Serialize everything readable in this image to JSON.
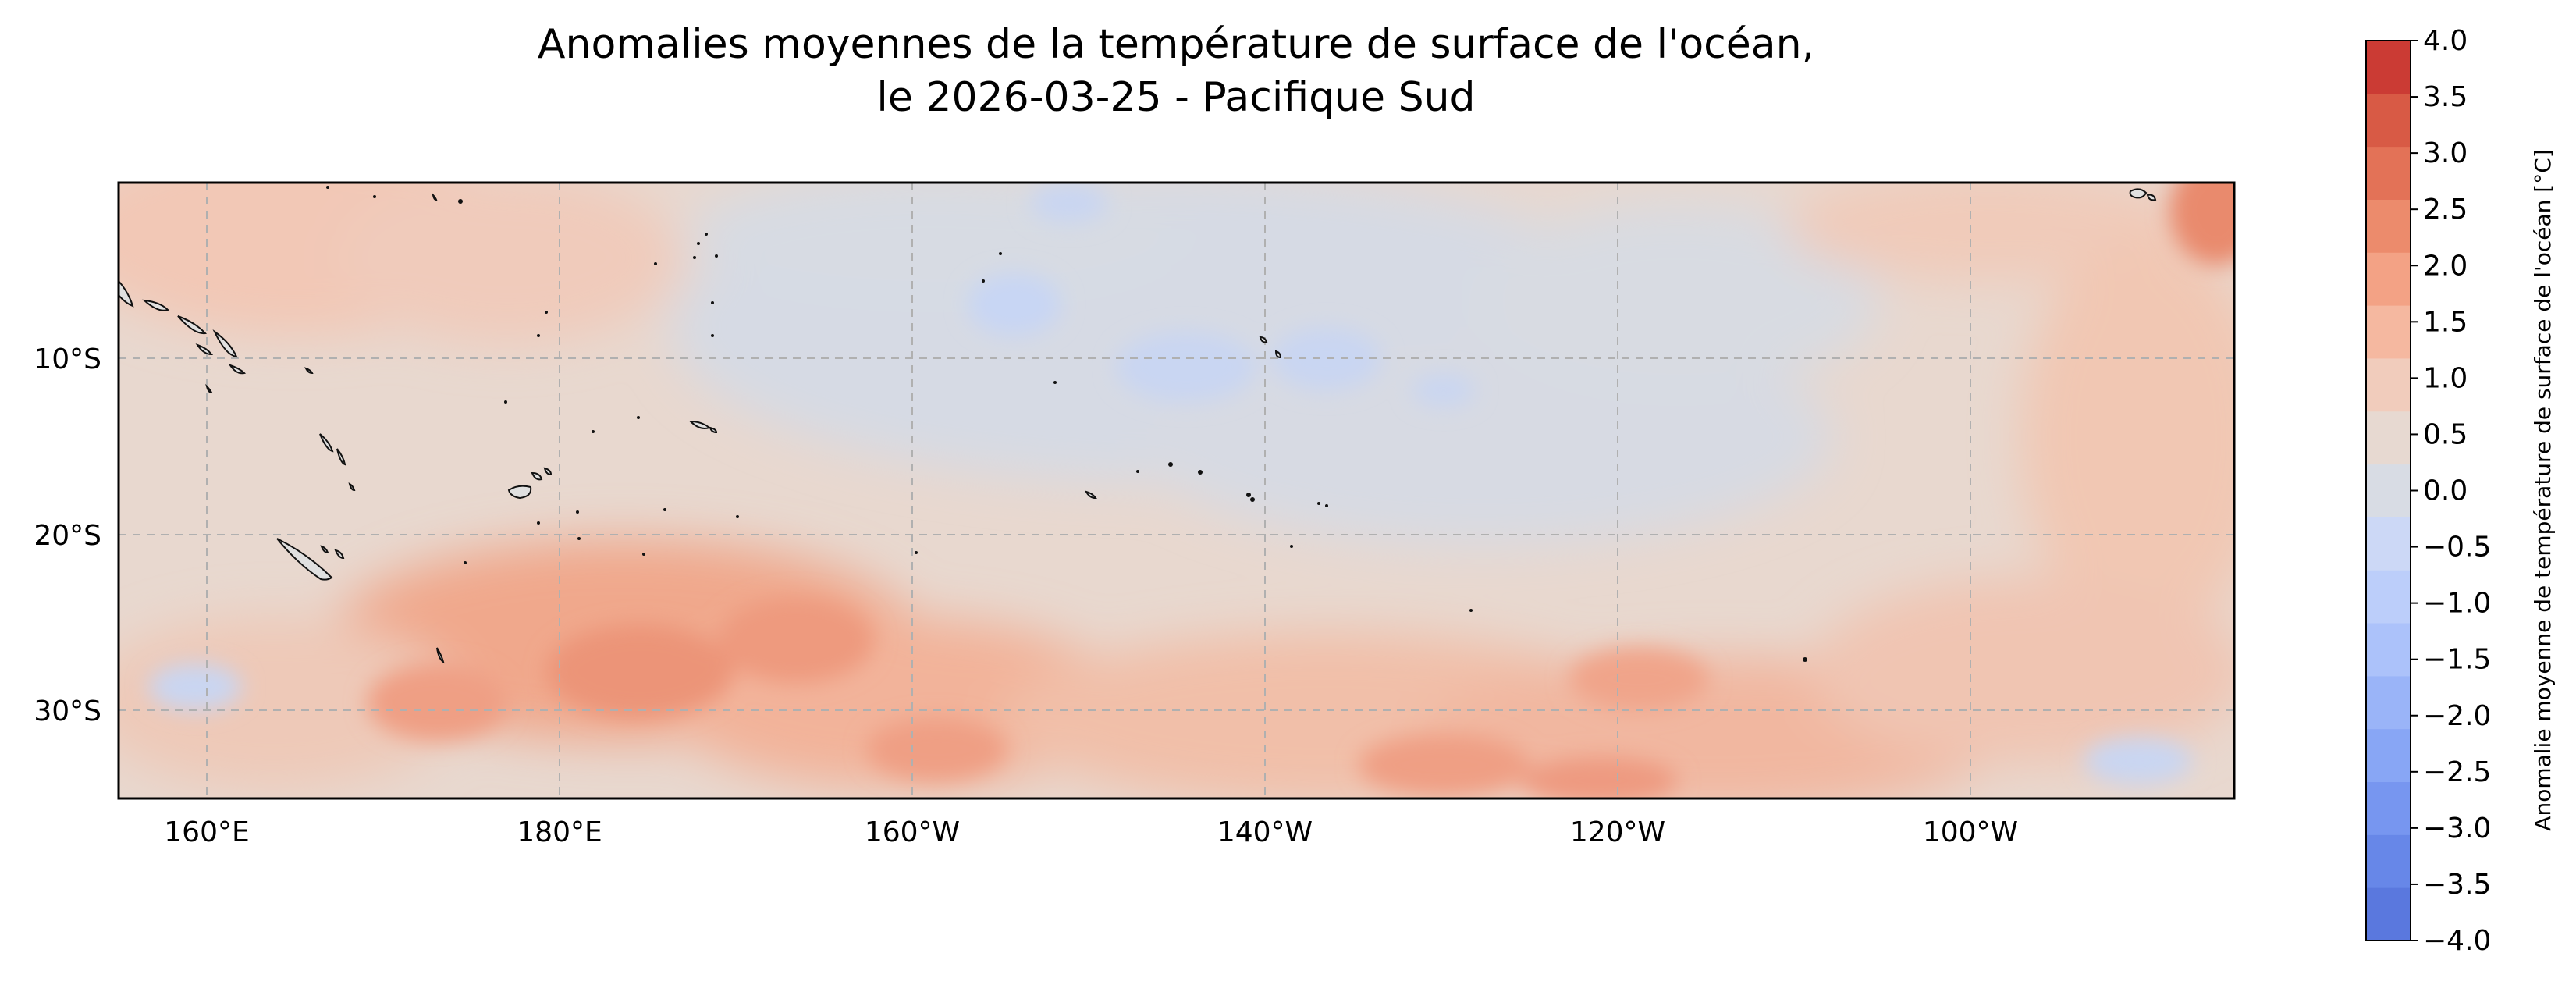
{
  "title": {
    "line1": "Anomalies moyennes de la température de surface de l'océan,",
    "line2": "le 2026-03-25 - Pacifique Sud"
  },
  "map": {
    "lon_range_deg_east": [
      155,
      275
    ],
    "lat_range": [
      -35,
      0
    ],
    "gridlines": true,
    "lon_ticks": [
      {
        "value": 160,
        "label": "160°E"
      },
      {
        "value": 180,
        "label": "180°E"
      },
      {
        "value": 200,
        "label": "160°W"
      },
      {
        "value": 220,
        "label": "140°W"
      },
      {
        "value": 240,
        "label": "120°W"
      },
      {
        "value": 260,
        "label": "100°W"
      }
    ],
    "lat_ticks": [
      {
        "value": -10,
        "label": "10°S"
      },
      {
        "value": -20,
        "label": "20°S"
      },
      {
        "value": -30,
        "label": "30°S"
      }
    ]
  },
  "colorbar": {
    "label": "Anomalie moyenne de température de surface de l'océan [°C]",
    "range": [
      -4.0,
      4.0
    ],
    "levels": [
      "−4.0",
      "−3.5",
      "−3.0",
      "−2.5",
      "−2.0",
      "−1.5",
      "−1.0",
      "−0.5",
      "0.0",
      "0.5",
      "1.0",
      "1.5",
      "2.0",
      "2.5",
      "3.0",
      "3.5",
      "4.0"
    ],
    "colors": [
      "#5a78de",
      "#6787e8",
      "#7796f0",
      "#88a6f5",
      "#9ab4f8",
      "#acc2fa",
      "#bccefa",
      "#ccd8f6",
      "#d8dce4",
      "#e7d9d1",
      "#f1ccbc",
      "#f5b8a0",
      "#f3a285",
      "#ec8b6c",
      "#e37257",
      "#d85a45",
      "#cb3b34"
    ]
  }
}
